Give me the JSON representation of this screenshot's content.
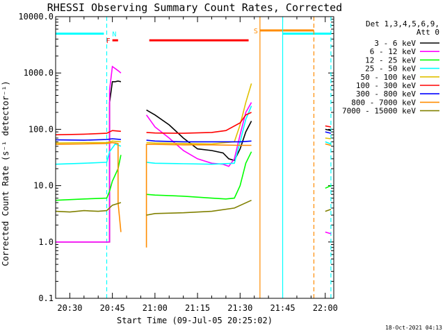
{
  "chart_data": {
    "type": "line",
    "title": "RHESSI Observing Summary Count Rates, Corrected",
    "xlabel": "Start Time (09-Jul-05 20:25:02)",
    "ylabel": "Corrected Count Rate (s⁻¹ detector⁻¹)",
    "y_scale": "log",
    "ylim": [
      0.1,
      10000
    ],
    "xlim": [
      "20:25",
      "22:03"
    ],
    "x_ticks": [
      "20:30",
      "20:45",
      "21:00",
      "21:15",
      "21:30",
      "21:45",
      "22:00"
    ],
    "y_ticks": [
      "0.1",
      "1.0",
      "10.0",
      "100.0",
      "1000.0",
      "10000.0"
    ],
    "legend_title": "Det 1,3,4,5,6,9,",
    "legend_subtitle": "Att 0",
    "legend_position": "right",
    "footer_date": "18-Oct-2021 04:13",
    "state_markers": [
      {
        "label": "F",
        "color": "#ff0000",
        "value": 3800,
        "segments": [
          [
            "20:45",
            "20:47"
          ],
          [
            "20:58",
            "21:33"
          ]
        ]
      },
      {
        "label": "S",
        "color": "#ff8c00",
        "value": 5700,
        "segments": [
          [
            "21:37",
            "21:56"
          ]
        ]
      },
      {
        "label": "N",
        "color": "#00ffff",
        "value": 5000,
        "segments": [
          [
            "20:25",
            "20:42"
          ],
          [
            "21:45",
            "22:02"
          ]
        ]
      }
    ],
    "vertical_lines": [
      {
        "time": "20:43",
        "color": "#00ffff",
        "dashed": true
      },
      {
        "time": "21:37",
        "color": "#ff8c00",
        "dashed": false
      },
      {
        "time": "21:45",
        "color": "#00ffff",
        "dashed": false
      },
      {
        "time": "21:56",
        "color": "#ff8c00",
        "dashed": true
      },
      {
        "time": "22:02",
        "color": "#00ffff",
        "dashed": true
      }
    ],
    "series": [
      {
        "name": "3 - 6 keV",
        "color": "#000000",
        "segments": [
          {
            "x": [
              "20:25",
              "20:44",
              "20:44",
              "20:45",
              "20:46",
              "20:47",
              "20:48"
            ],
            "y": [
              1.0,
              1.0,
              300,
              700,
              700,
              720,
              700
            ]
          },
          {
            "x": [
              "20:57",
              "21:00",
              "21:05",
              "21:10",
              "21:15",
              "21:20",
              "21:24",
              "21:26",
              "21:28",
              "21:30",
              "21:32",
              "21:34"
            ],
            "y": [
              220,
              180,
              120,
              70,
              45,
              42,
              38,
              30,
              28,
              45,
              90,
              140
            ]
          },
          {
            "x": [
              "22:00",
              "22:02"
            ],
            "y": [
              100,
              95
            ]
          }
        ]
      },
      {
        "name": "6 - 12 keV",
        "color": "#ff00ff",
        "segments": [
          {
            "x": [
              "20:25",
              "20:44",
              "20:44",
              "20:45",
              "20:46",
              "20:47",
              "20:48"
            ],
            "y": [
              1.0,
              1.0,
              500,
              1300,
              1200,
              1100,
              1000
            ]
          },
          {
            "x": [
              "20:57",
              "21:00",
              "21:05",
              "21:10",
              "21:15",
              "21:20",
              "21:24",
              "21:26",
              "21:28",
              "21:30",
              "21:32",
              "21:34"
            ],
            "y": [
              180,
              110,
              70,
              42,
              30,
              25,
              24,
              22,
              30,
              80,
              200,
              300
            ]
          },
          {
            "x": [
              "22:00",
              "22:02"
            ],
            "y": [
              1.5,
              1.4
            ]
          }
        ]
      },
      {
        "name": "12 - 25 keV",
        "color": "#00ff00",
        "segments": [
          {
            "x": [
              "20:25",
              "20:35",
              "20:43",
              "20:44",
              "20:45",
              "20:47",
              "20:48"
            ],
            "y": [
              5.5,
              5.8,
              6.0,
              8,
              12,
              20,
              35
            ]
          },
          {
            "x": [
              "20:57",
              "21:00",
              "21:10",
              "21:20",
              "21:25",
              "21:28",
              "21:30",
              "21:32",
              "21:34"
            ],
            "y": [
              7,
              6.8,
              6.5,
              6.0,
              5.8,
              6.0,
              10,
              25,
              40
            ]
          },
          {
            "x": [
              "22:00",
              "22:02"
            ],
            "y": [
              9,
              10
            ]
          }
        ]
      },
      {
        "name": "25 - 50 keV",
        "color": "#00ffff",
        "segments": [
          {
            "x": [
              "20:25",
              "20:35",
              "20:43",
              "20:44",
              "20:46",
              "20:48"
            ],
            "y": [
              24,
              25,
              26,
              40,
              55,
              50
            ]
          },
          {
            "x": [
              "20:57",
              "21:00",
              "21:10",
              "21:20",
              "21:28",
              "21:30",
              "21:32",
              "21:34"
            ],
            "y": [
              26,
              25,
              24.5,
              24,
              25,
              60,
              150,
              260
            ]
          },
          {
            "x": [
              "22:00",
              "22:02"
            ],
            "y": [
              60,
              55
            ]
          }
        ]
      },
      {
        "name": "50 - 100 keV",
        "color": "#e0c000",
        "segments": [
          {
            "x": [
              "20:25",
              "20:35",
              "20:43",
              "20:45",
              "20:48"
            ],
            "y": [
              57,
              58,
              58,
              62,
              60
            ]
          },
          {
            "x": [
              "20:57",
              "21:00",
              "21:10",
              "21:20",
              "21:28",
              "21:30",
              "21:32",
              "21:34"
            ],
            "y": [
              58,
              57,
              56,
              55,
              60,
              120,
              300,
              650
            ]
          },
          {
            "x": [
              "22:00",
              "22:02"
            ],
            "y": [
              70,
              68
            ]
          }
        ]
      },
      {
        "name": "100 - 300 keV",
        "color": "#ff0000",
        "segments": [
          {
            "x": [
              "20:25",
              "20:35",
              "20:43",
              "20:45",
              "20:48"
            ],
            "y": [
              80,
              82,
              85,
              95,
              92
            ]
          },
          {
            "x": [
              "20:57",
              "21:00",
              "21:10",
              "21:20",
              "21:25",
              "21:30",
              "21:32",
              "21:34"
            ],
            "y": [
              88,
              86,
              85,
              88,
              95,
              130,
              180,
              200
            ]
          },
          {
            "x": [
              "22:00",
              "22:02"
            ],
            "y": [
              115,
              110
            ]
          }
        ]
      },
      {
        "name": "300 - 800 keV",
        "color": "#0000ff",
        "segments": [
          {
            "x": [
              "20:25",
              "20:35",
              "20:43",
              "20:45",
              "20:48"
            ],
            "y": [
              65,
              64,
              66,
              68,
              66
            ]
          },
          {
            "x": [
              "20:57",
              "21:00",
              "21:10",
              "21:20",
              "21:30",
              "21:34"
            ],
            "y": [
              64,
              62,
              60,
              60,
              60,
              62
            ]
          },
          {
            "x": [
              "22:00",
              "22:02"
            ],
            "y": [
              90,
              85
            ]
          }
        ]
      },
      {
        "name": "800 - 7000 keV",
        "color": "#ff8c00",
        "segments": [
          {
            "x": [
              "20:25",
              "20:35",
              "20:43",
              "20:45",
              "20:47",
              "20:47",
              "20:48"
            ],
            "y": [
              54,
              55,
              56,
              58,
              56,
              5.0,
              1.5
            ]
          },
          {
            "x": [
              "20:57",
              "20:57",
              "21:00",
              "21:10",
              "21:20",
              "21:30",
              "21:34"
            ],
            "y": [
              0.8,
              54,
              54,
              53,
              53,
              52,
              52
            ]
          },
          {
            "x": [
              "22:00",
              "22:02"
            ],
            "y": [
              55,
              52
            ]
          }
        ]
      },
      {
        "name": "7000 - 15000 keV",
        "color": "#808000",
        "segments": [
          {
            "x": [
              "20:25",
              "20:30",
              "20:35",
              "20:40",
              "20:43",
              "20:45",
              "20:48"
            ],
            "y": [
              3.5,
              3.4,
              3.6,
              3.5,
              3.6,
              4.5,
              5
            ]
          },
          {
            "x": [
              "20:57",
              "21:00",
              "21:10",
              "21:20",
              "21:28",
              "21:34"
            ],
            "y": [
              3.0,
              3.2,
              3.3,
              3.5,
              4.0,
              5.5
            ]
          },
          {
            "x": [
              "22:00",
              "22:02"
            ],
            "y": [
              3.5,
              3.8
            ]
          }
        ]
      }
    ]
  }
}
